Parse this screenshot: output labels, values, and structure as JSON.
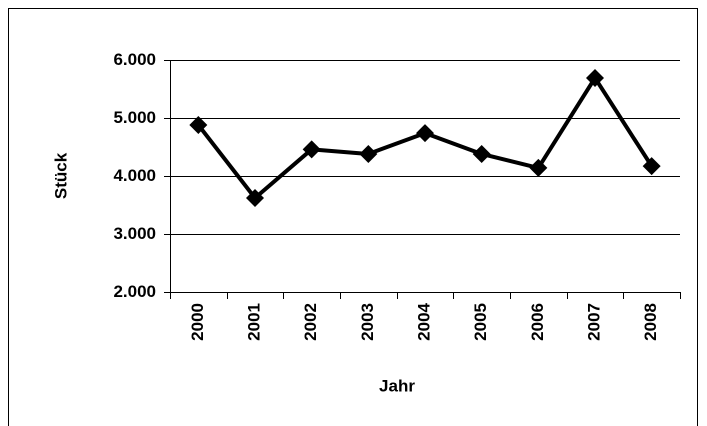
{
  "chart_data": {
    "type": "line",
    "x_label": "Jahr",
    "y_label": "Stück",
    "categories": [
      "2000",
      "2001",
      "2002",
      "2003",
      "2004",
      "2005",
      "2006",
      "2007",
      "2008"
    ],
    "values": [
      4880,
      3620,
      4460,
      4380,
      4740,
      4380,
      4140,
      5690,
      4170
    ],
    "color": "#000000",
    "ylim": [
      2000,
      6000
    ],
    "yticks": [
      {
        "value": 2000,
        "label": "2.000"
      },
      {
        "value": 3000,
        "label": "3.000"
      },
      {
        "value": 4000,
        "label": "4.000"
      },
      {
        "value": 5000,
        "label": "5.000"
      },
      {
        "value": 6000,
        "label": "6.000"
      }
    ],
    "grid": true
  }
}
